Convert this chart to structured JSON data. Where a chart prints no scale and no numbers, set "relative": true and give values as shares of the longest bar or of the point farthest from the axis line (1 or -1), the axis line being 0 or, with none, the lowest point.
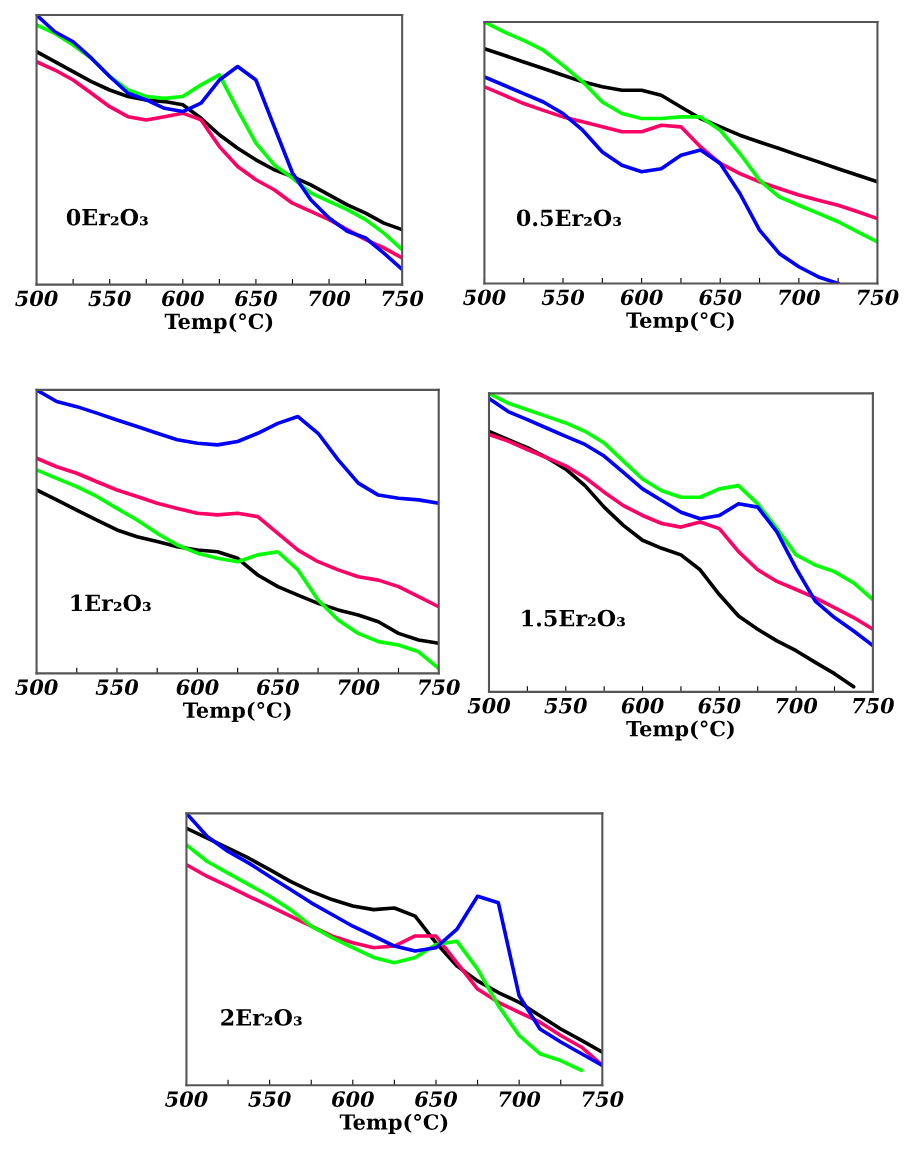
{
  "chart_data": [
    {
      "type": "line",
      "relative": true,
      "xlabel": "Temp(°C)",
      "annotations": [
        "0Er₂O₃"
      ],
      "xlim": [
        500,
        750
      ],
      "xticks": [
        500,
        {
          "value": 525,
          "label": null
        },
        550,
        {
          "value": 575,
          "label": null
        },
        600,
        {
          "value": 625,
          "label": null
        },
        650,
        {
          "value": 675,
          "label": null
        },
        700,
        {
          "value": 725,
          "label": null
        },
        750
      ],
      "x": [
        500,
        512.5,
        525,
        537.5,
        550,
        562.5,
        575,
        587.5,
        600,
        612.5,
        625,
        637.5,
        650,
        662.5,
        675,
        687.5,
        700,
        712.5,
        725,
        737.5,
        750
      ],
      "series": [
        {
          "color": "#000000",
          "values": [
            0.864,
            0.827,
            0.79,
            0.753,
            0.722,
            0.698,
            0.685,
            0.679,
            0.667,
            0.617,
            0.556,
            0.506,
            0.463,
            0.426,
            0.401,
            0.37,
            0.333,
            0.296,
            0.265,
            0.228,
            0.204
          ]
        },
        {
          "color": "#ff0066",
          "values": [
            0.827,
            0.796,
            0.759,
            0.71,
            0.66,
            0.623,
            0.611,
            0.623,
            0.636,
            0.611,
            0.512,
            0.438,
            0.389,
            0.352,
            0.302,
            0.272,
            0.241,
            0.204,
            0.167,
            0.136,
            0.099
          ]
        },
        {
          "color": "#00ff00",
          "values": [
            0.963,
            0.932,
            0.889,
            0.84,
            0.772,
            0.722,
            0.698,
            0.691,
            0.698,
            0.741,
            0.778,
            0.648,
            0.525,
            0.444,
            0.395,
            0.34,
            0.309,
            0.278,
            0.241,
            0.191,
            0.13
          ]
        },
        {
          "color": "#0000ff",
          "values": [
            1.0,
            0.938,
            0.901,
            0.84,
            0.772,
            0.71,
            0.685,
            0.654,
            0.642,
            0.673,
            0.759,
            0.809,
            0.759,
            0.586,
            0.414,
            0.315,
            0.247,
            0.198,
            0.173,
            0.117,
            0.056
          ]
        }
      ]
    },
    {
      "type": "line",
      "relative": true,
      "xlabel": "Temp(°C)",
      "annotations": [
        "0.5Er₂O₃"
      ],
      "xlim": [
        500,
        750
      ],
      "xticks": [
        500,
        {
          "value": 525,
          "label": null
        },
        550,
        {
          "value": 575,
          "label": null
        },
        600,
        {
          "value": 625,
          "label": null
        },
        650,
        {
          "value": 675,
          "label": null
        },
        700,
        {
          "value": 725,
          "label": null
        },
        750
      ],
      "x": [
        500,
        512.5,
        525,
        537.5,
        550,
        562.5,
        575,
        587.5,
        600,
        612.5,
        625,
        637.5,
        650,
        662.5,
        675,
        687.5,
        700,
        712.5,
        725,
        737.5,
        750
      ],
      "series": [
        {
          "color": "#000000",
          "values": [
            0.898,
            0.873,
            0.847,
            0.822,
            0.796,
            0.771,
            0.752,
            0.739,
            0.739,
            0.72,
            0.675,
            0.631,
            0.599,
            0.567,
            0.541,
            0.516,
            0.49,
            0.465,
            0.439,
            0.414,
            0.389
          ]
        },
        {
          "color": "#ff0066",
          "values": [
            0.752,
            0.72,
            0.688,
            0.662,
            0.637,
            0.618,
            0.599,
            0.58,
            0.58,
            0.605,
            0.599,
            0.522,
            0.459,
            0.42,
            0.389,
            0.363,
            0.338,
            0.318,
            0.299,
            0.274,
            0.248
          ]
        },
        {
          "color": "#00ff00",
          "values": [
            1.0,
            0.962,
            0.93,
            0.892,
            0.834,
            0.771,
            0.694,
            0.65,
            0.631,
            0.631,
            0.637,
            0.637,
            0.586,
            0.497,
            0.395,
            0.331,
            0.299,
            0.268,
            0.236,
            0.197,
            0.159
          ]
        },
        {
          "color": "#0000ff",
          "values": [
            0.79,
            0.758,
            0.726,
            0.694,
            0.65,
            0.586,
            0.503,
            0.452,
            0.427,
            0.439,
            0.49,
            0.51,
            0.459,
            0.344,
            0.204,
            0.115,
            0.064,
            0.025,
            0.0,
            null,
            null
          ]
        }
      ]
    },
    {
      "type": "line",
      "relative": true,
      "xlabel": "Temp(°C)",
      "annotations": [
        "1Er₂O₃"
      ],
      "xlim": [
        500,
        750
      ],
      "xticks": [
        500,
        {
          "value": 525,
          "label": null
        },
        550,
        {
          "value": 575,
          "label": null
        },
        600,
        {
          "value": 625,
          "label": null
        },
        650,
        {
          "value": 675,
          "label": null
        },
        700,
        {
          "value": 725,
          "label": null
        },
        750
      ],
      "x": [
        500,
        512.5,
        525,
        537.5,
        550,
        562.5,
        575,
        587.5,
        600,
        612.5,
        625,
        637.5,
        650,
        662.5,
        675,
        687.5,
        700,
        712.5,
        725,
        737.5,
        750
      ],
      "series": [
        {
          "color": "#000000",
          "values": [
            0.647,
            0.612,
            0.576,
            0.541,
            0.506,
            0.482,
            0.465,
            0.447,
            0.435,
            0.429,
            0.406,
            0.347,
            0.306,
            0.276,
            0.247,
            0.224,
            0.206,
            0.182,
            0.141,
            0.118,
            0.106
          ]
        },
        {
          "color": "#ff0066",
          "values": [
            0.759,
            0.729,
            0.706,
            0.676,
            0.647,
            0.624,
            0.6,
            0.582,
            0.565,
            0.559,
            0.565,
            0.553,
            0.494,
            0.435,
            0.394,
            0.365,
            0.341,
            0.329,
            0.306,
            0.271,
            0.235
          ]
        },
        {
          "color": "#00ff00",
          "values": [
            0.718,
            0.688,
            0.659,
            0.624,
            0.582,
            0.541,
            0.494,
            0.453,
            0.424,
            0.406,
            0.394,
            0.418,
            0.429,
            0.365,
            0.259,
            0.188,
            0.141,
            0.112,
            0.1,
            0.076,
            0.018
          ]
        },
        {
          "color": "#0000ff",
          "values": [
            1.0,
            0.959,
            0.941,
            0.918,
            0.894,
            0.871,
            0.847,
            0.824,
            0.812,
            0.806,
            0.818,
            0.847,
            0.882,
            0.906,
            0.847,
            0.753,
            0.671,
            0.629,
            0.618,
            0.612,
            0.6
          ]
        }
      ]
    },
    {
      "type": "line",
      "relative": true,
      "xlabel": "Temp(°C)",
      "annotations": [
        "1.5Er₂O₃"
      ],
      "xlim": [
        500,
        750
      ],
      "xticks": [
        500,
        {
          "value": 525,
          "label": null
        },
        550,
        {
          "value": 575,
          "label": null
        },
        600,
        {
          "value": 625,
          "label": null
        },
        650,
        {
          "value": 675,
          "label": null
        },
        700,
        {
          "value": 725,
          "label": null
        },
        750
      ],
      "x": [
        500,
        512.5,
        525,
        537.5,
        550,
        562.5,
        575,
        587.5,
        600,
        612.5,
        625,
        637.5,
        650,
        662.5,
        675,
        687.5,
        700,
        712.5,
        725,
        737.5,
        750
      ],
      "series": [
        {
          "color": "#000000",
          "values": [
            0.873,
            0.845,
            0.818,
            0.785,
            0.746,
            0.691,
            0.619,
            0.558,
            0.508,
            0.481,
            0.459,
            0.409,
            0.326,
            0.254,
            0.21,
            0.171,
            0.138,
            0.099,
            0.061,
            0.017,
            null
          ]
        },
        {
          "color": "#ff0066",
          "values": [
            0.862,
            0.84,
            0.812,
            0.785,
            0.757,
            0.718,
            0.669,
            0.624,
            0.591,
            0.564,
            0.552,
            0.569,
            0.547,
            0.47,
            0.409,
            0.37,
            0.343,
            0.315,
            0.282,
            0.249,
            0.21
          ]
        },
        {
          "color": "#00ff00",
          "values": [
            1.0,
            0.967,
            0.945,
            0.923,
            0.901,
            0.873,
            0.834,
            0.773,
            0.713,
            0.674,
            0.652,
            0.652,
            0.68,
            0.691,
            0.63,
            0.547,
            0.459,
            0.425,
            0.403,
            0.365,
            0.309
          ]
        },
        {
          "color": "#0000ff",
          "values": [
            0.983,
            0.939,
            0.912,
            0.884,
            0.856,
            0.829,
            0.79,
            0.735,
            0.68,
            0.641,
            0.602,
            0.58,
            0.591,
            0.63,
            0.619,
            0.536,
            0.414,
            0.304,
            0.249,
            0.204,
            0.155
          ]
        }
      ]
    },
    {
      "type": "line",
      "relative": true,
      "xlabel": "Temp(°C)",
      "annotations": [
        "2Er₂O₃"
      ],
      "xlim": [
        500,
        750
      ],
      "xticks": [
        500,
        {
          "value": 525,
          "label": null
        },
        550,
        {
          "value": 575,
          "label": null
        },
        600,
        {
          "value": 625,
          "label": null
        },
        650,
        {
          "value": 675,
          "label": null
        },
        700,
        {
          "value": 725,
          "label": null
        },
        750
      ],
      "x": [
        500,
        512.5,
        525,
        537.5,
        550,
        562.5,
        575,
        587.5,
        600,
        612.5,
        625,
        637.5,
        650,
        662.5,
        675,
        687.5,
        700,
        712.5,
        725,
        737.5,
        750
      ],
      "series": [
        {
          "color": "#000000",
          "values": [
            0.945,
            0.909,
            0.872,
            0.835,
            0.793,
            0.75,
            0.713,
            0.683,
            0.659,
            0.646,
            0.652,
            0.622,
            0.524,
            0.439,
            0.384,
            0.341,
            0.305,
            0.256,
            0.207,
            0.165,
            0.122
          ]
        },
        {
          "color": "#ff0066",
          "values": [
            0.811,
            0.768,
            0.732,
            0.695,
            0.659,
            0.622,
            0.585,
            0.549,
            0.524,
            0.506,
            0.512,
            0.549,
            0.549,
            0.451,
            0.354,
            0.305,
            0.268,
            0.232,
            0.183,
            0.14,
            0.073
          ]
        },
        {
          "color": "#00ff00",
          "values": [
            0.884,
            0.823,
            0.78,
            0.738,
            0.695,
            0.646,
            0.585,
            0.543,
            0.506,
            0.47,
            0.451,
            0.47,
            0.518,
            0.53,
            0.427,
            0.293,
            0.183,
            0.116,
            0.091,
            0.055,
            null
          ]
        },
        {
          "color": "#0000ff",
          "values": [
            1.0,
            0.915,
            0.86,
            0.817,
            0.768,
            0.72,
            0.671,
            0.628,
            0.585,
            0.549,
            0.512,
            0.494,
            0.506,
            0.573,
            0.695,
            0.671,
            0.329,
            0.207,
            0.159,
            0.116,
            0.073
          ]
        }
      ]
    }
  ]
}
